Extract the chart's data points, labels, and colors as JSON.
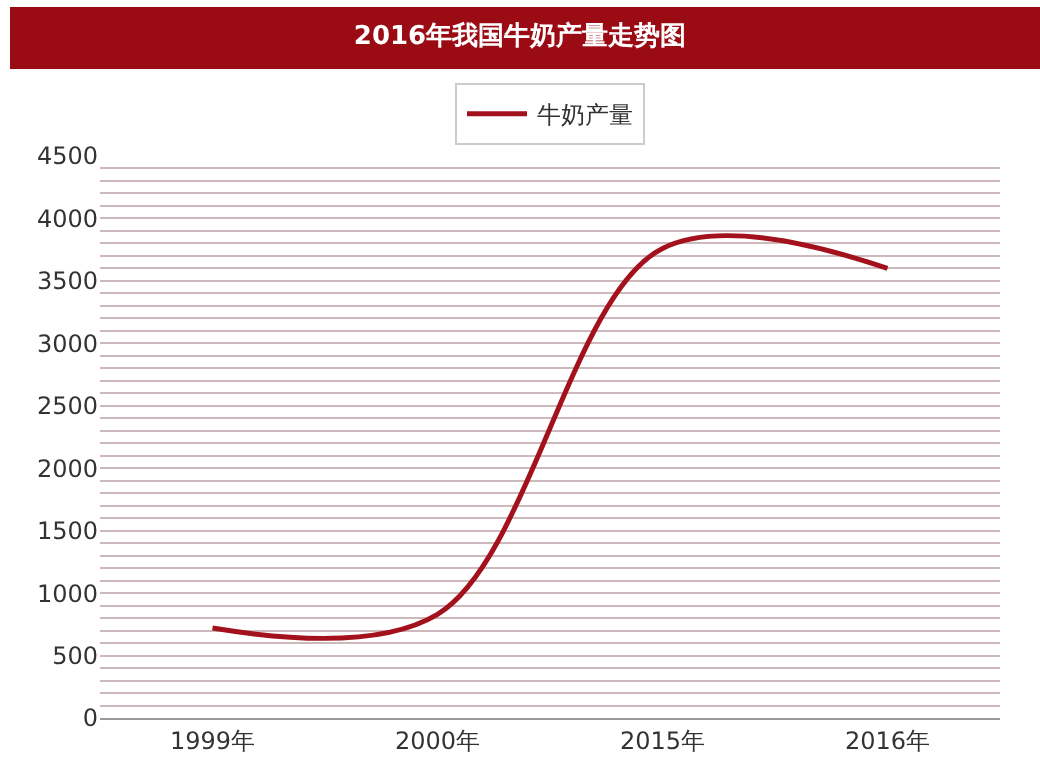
{
  "chart_data": {
    "type": "line",
    "title": "2016年我国牛奶产量走势图",
    "categories": [
      "1999年",
      "2000年",
      "2015年",
      "2016年"
    ],
    "series": [
      {
        "name": "牛奶产量",
        "color": "#a3111d",
        "values": [
          720,
          830,
          3760,
          3600
        ]
      }
    ],
    "ylim": [
      0,
      4500
    ],
    "yticks": [
      0,
      {
        "value": 100,
        "label": null
      },
      {
        "value": 200,
        "label": null
      },
      {
        "value": 300,
        "label": null
      },
      {
        "value": 400,
        "label": null
      },
      500,
      {
        "value": 600,
        "label": null
      },
      {
        "value": 700,
        "label": null
      },
      {
        "value": 800,
        "label": null
      },
      {
        "value": 900,
        "label": null
      },
      1000,
      {
        "value": 1100,
        "label": null
      },
      {
        "value": 1200,
        "label": null
      },
      {
        "value": 1300,
        "label": null
      },
      {
        "value": 1400,
        "label": null
      },
      1500,
      {
        "value": 1600,
        "label": null
      },
      {
        "value": 1700,
        "label": null
      },
      {
        "value": 1800,
        "label": null
      },
      {
        "value": 1900,
        "label": null
      },
      2000,
      {
        "value": 2100,
        "label": null
      },
      {
        "value": 2200,
        "label": null
      },
      {
        "value": 2300,
        "label": null
      },
      {
        "value": 2400,
        "label": null
      },
      2500,
      {
        "value": 2600,
        "label": null
      },
      {
        "value": 2700,
        "label": null
      },
      {
        "value": 2800,
        "label": null
      },
      {
        "value": 2900,
        "label": null
      },
      3000,
      {
        "value": 3100,
        "label": null
      },
      {
        "value": 3200,
        "label": null
      },
      {
        "value": 3300,
        "label": null
      },
      {
        "value": 3400,
        "label": null
      },
      3500,
      {
        "value": 3600,
        "label": null
      },
      {
        "value": 3700,
        "label": null
      },
      {
        "value": 3800,
        "label": null
      },
      {
        "value": 3900,
        "label": null
      },
      4000,
      {
        "value": 4100,
        "label": null
      },
      {
        "value": 4200,
        "label": null
      },
      {
        "value": 4300,
        "label": null
      },
      {
        "value": 4400,
        "label": null
      },
      4500
    ],
    "grid": "y",
    "legend": "top",
    "marker": "none",
    "line_style": "solid"
  }
}
